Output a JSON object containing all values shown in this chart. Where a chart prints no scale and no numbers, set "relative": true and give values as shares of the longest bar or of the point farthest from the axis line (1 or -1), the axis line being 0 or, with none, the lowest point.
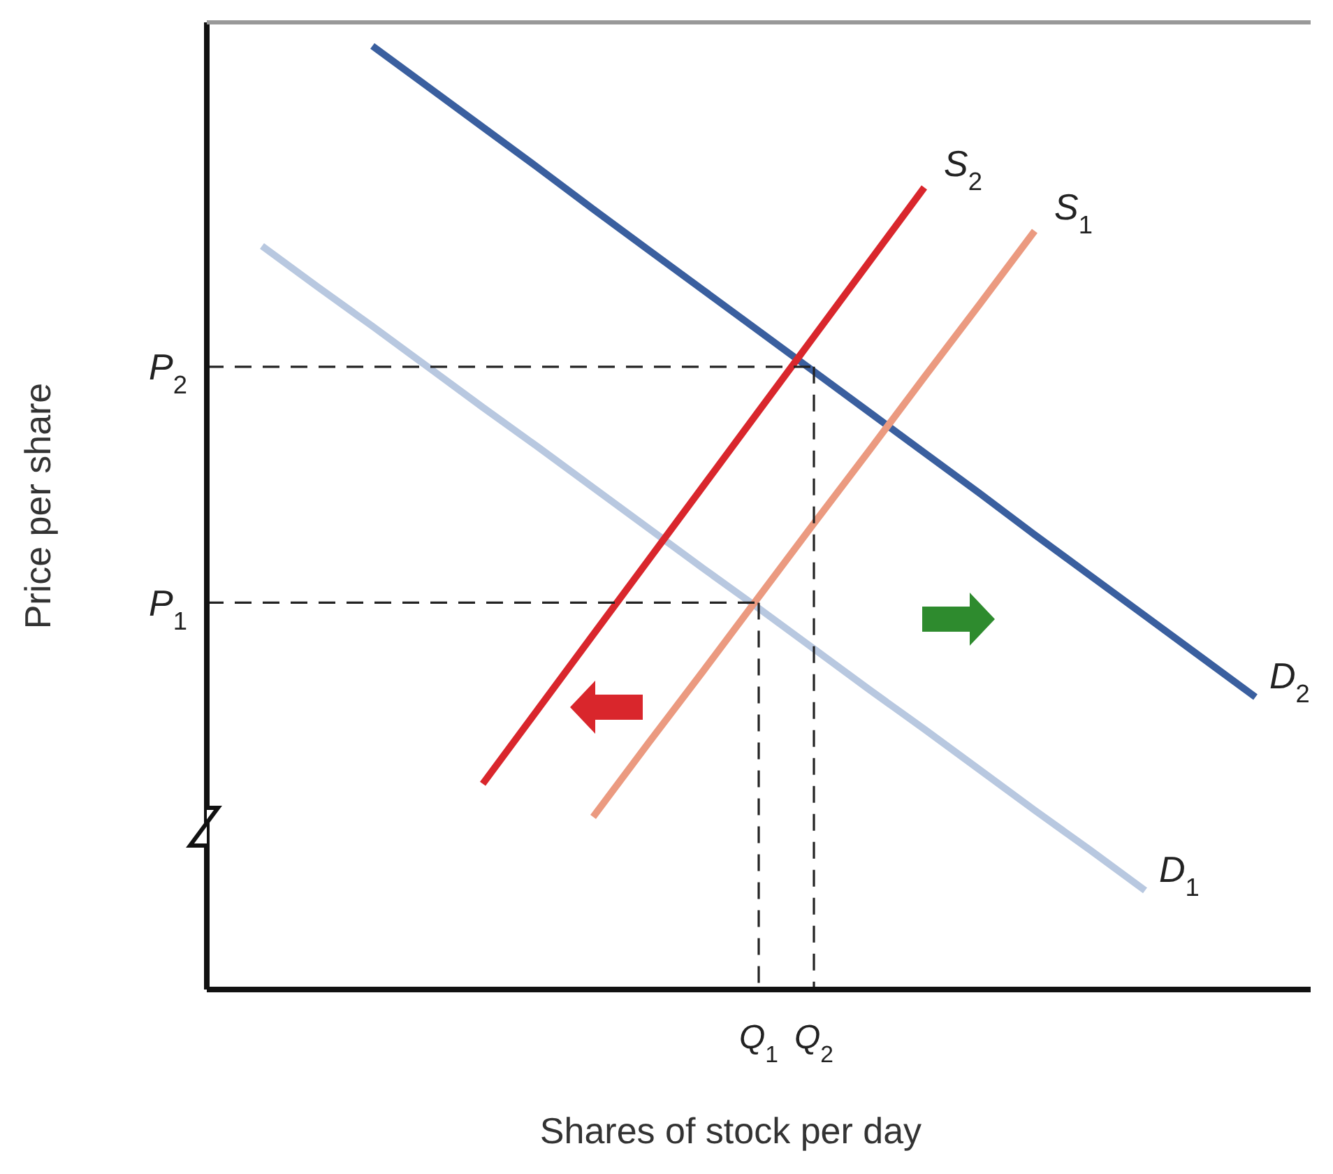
{
  "chart_data": {
    "type": "line",
    "xlabel": "Shares of stock per day",
    "ylabel": "Price per share",
    "relative": true,
    "marker": "none",
    "ref_lines": [
      {
        "axis": "x",
        "value": "Q$_{1}$",
        "color": "#222222",
        "line_style": "dashed"
      },
      {
        "axis": "x",
        "value": "Q$_{2}$",
        "color": "#222222",
        "line_style": "dashed"
      }
    ],
    "categories": [
      null,
      null,
      null,
      null,
      null,
      null,
      null,
      null,
      null,
      null,
      "Q$_{1}$",
      "Q$_{2}$",
      null,
      null,
      null,
      null,
      null,
      null,
      null,
      null,
      null
    ],
    "series": [
      {
        "name": "D$_{2}$",
        "color": "#3a5f9f",
        "values": [
          null,
          null,
          null,
          1,
          0.957,
          0.914,
          0.871,
          0.827,
          0.784,
          0.741,
          0.698,
          0.655,
          0.612,
          0.569,
          0.526,
          0.482,
          0.439,
          0.396,
          0.353,
          0.31,
          null
        ]
      },
      {
        "name": "D$_{1}$",
        "color": "#b8c8e0",
        "values": [
          null,
          0.788,
          0.745,
          0.703,
          0.66,
          0.617,
          0.575,
          0.532,
          0.489,
          0.446,
          0.404,
          0.361,
          0.318,
          0.276,
          0.233,
          0.19,
          0.148,
          0.105,
          null,
          null,
          null
        ]
      },
      {
        "name": "S$_{2}$",
        "color": "#d9262c",
        "values": [
          null,
          null,
          null,
          null,
          null,
          0.218,
          0.297,
          0.376,
          0.455,
          0.534,
          0.613,
          0.692,
          0.771,
          0.85,
          null,
          null,
          null,
          null,
          null,
          null,
          null
        ]
      },
      {
        "name": "S$_{1}$",
        "color": "#eb9a80",
        "values": [
          null,
          null,
          null,
          null,
          null,
          null,
          null,
          0.183,
          0.261,
          0.338,
          0.416,
          0.494,
          0.571,
          0.649,
          0.726,
          0.804,
          null,
          null,
          null,
          null,
          null
        ]
      },
      {
        "name": "P$_{2}$",
        "color": "#222222",
        "line_style": "dashed",
        "values": [
          0.66,
          0.66,
          0.66,
          0.66,
          0.66,
          0.66,
          0.66,
          0.66,
          0.66,
          0.66,
          0.66,
          0.66,
          null,
          null,
          null,
          null,
          null,
          null,
          null,
          null,
          null
        ]
      },
      {
        "name": "P$_{1}$",
        "color": "#222222",
        "line_style": "dashed",
        "values": [
          0.41,
          0.41,
          0.41,
          0.41,
          0.41,
          0.41,
          0.41,
          0.41,
          0.41,
          0.41,
          0.41,
          null,
          null,
          null,
          null,
          null,
          null,
          null,
          null,
          null,
          null
        ]
      }
    ]
  }
}
